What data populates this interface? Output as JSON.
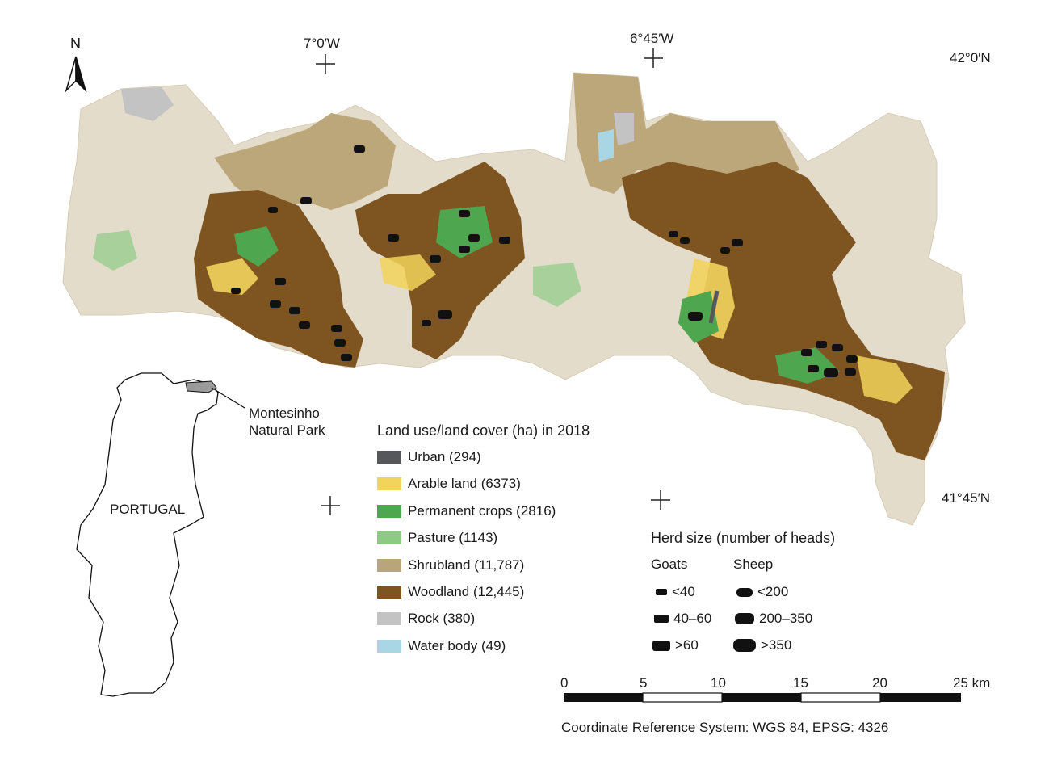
{
  "north_label": "N",
  "graticule": {
    "lon1": "7°0′W",
    "lon2": "6°45′W",
    "lat_top": "42°0′N",
    "lat_bottom": "41°45′N"
  },
  "inset": {
    "country_label": "PORTUGAL",
    "park_label_line1": "Montesinho",
    "park_label_line2": "Natural Park"
  },
  "legend": {
    "title": "Land use/land cover (ha) in 2018",
    "items": [
      {
        "label": "Urban (294)",
        "color": "#56575a"
      },
      {
        "label": "Arable land (6373)",
        "color": "#f2d35c"
      },
      {
        "label": "Permanent crops (2816)",
        "color": "#4ea64e"
      },
      {
        "label": "Pasture (1143)",
        "color": "#8dcb84"
      },
      {
        "label": "Shrubland (11,787)",
        "color": "#b9a57a"
      },
      {
        "label": "Woodland (12,445)",
        "color": "#7e5520"
      },
      {
        "label": "Rock (380)",
        "color": "#c3c3c3"
      },
      {
        "label": "Water body (49)",
        "color": "#a8d6e4"
      }
    ]
  },
  "herd": {
    "title": "Herd size (number of heads)",
    "goats_label": "Goats",
    "sheep_label": "Sheep",
    "goats": [
      "<40",
      "40–60",
      ">60"
    ],
    "sheep": [
      "<200",
      "200–350",
      ">350"
    ]
  },
  "scale_bar": {
    "ticks": [
      "0",
      "5",
      "10",
      "15",
      "20"
    ],
    "end_label": "25 km"
  },
  "crs": "Coordinate Reference System: WGS 84, EPSG: 4326",
  "colors": {
    "background_faded": "#e6e0d2",
    "shrubland_faded": "#cdbf9d"
  }
}
